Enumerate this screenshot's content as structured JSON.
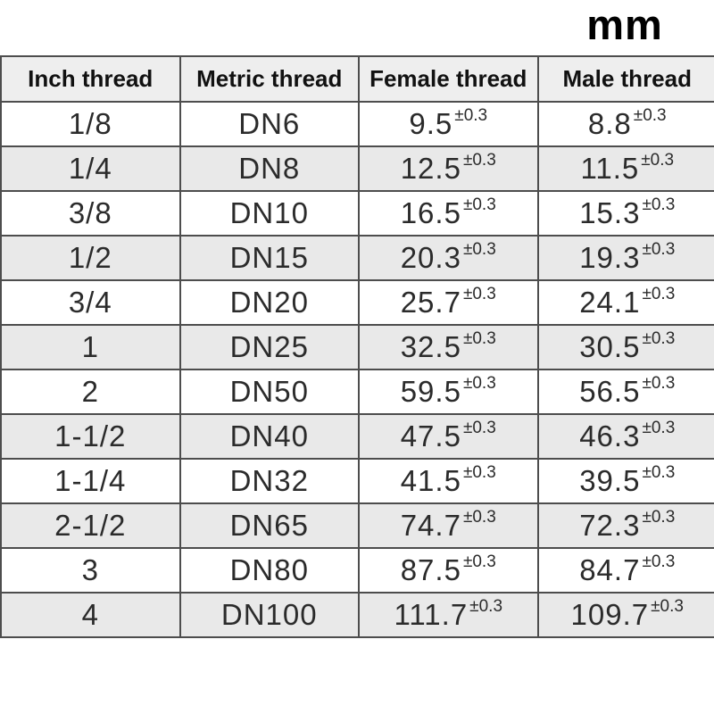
{
  "unit_label": "mm",
  "colors": {
    "border": "#4d4d4d",
    "header_bg": "#eeeeee",
    "alt_row_bg": "#e9e9e9",
    "page_bg": "#ffffff",
    "text": "#2b2b2b"
  },
  "chart_data": {
    "type": "table",
    "unit": "mm",
    "columns": [
      "Inch thread",
      "Metric thread",
      "Female thread",
      "Male thread"
    ],
    "tolerance": "±0.3",
    "rows": [
      {
        "inch": "1/8",
        "metric": "DN6",
        "female": "9.5",
        "male": "8.8"
      },
      {
        "inch": "1/4",
        "metric": "DN8",
        "female": "12.5",
        "male": "11.5"
      },
      {
        "inch": "3/8",
        "metric": "DN10",
        "female": "16.5",
        "male": "15.3"
      },
      {
        "inch": "1/2",
        "metric": "DN15",
        "female": "20.3",
        "male": "19.3"
      },
      {
        "inch": "3/4",
        "metric": "DN20",
        "female": "25.7",
        "male": "24.1"
      },
      {
        "inch": "1",
        "metric": "DN25",
        "female": "32.5",
        "male": "30.5"
      },
      {
        "inch": "2",
        "metric": "DN50",
        "female": "59.5",
        "male": "56.5"
      },
      {
        "inch": "1-1/2",
        "metric": "DN40",
        "female": "47.5",
        "male": "46.3"
      },
      {
        "inch": "1-1/4",
        "metric": "DN32",
        "female": "41.5",
        "male": "39.5"
      },
      {
        "inch": "2-1/2",
        "metric": "DN65",
        "female": "74.7",
        "male": "72.3"
      },
      {
        "inch": "3",
        "metric": "DN80",
        "female": "87.5",
        "male": "84.7"
      },
      {
        "inch": "4",
        "metric": "DN100",
        "female": "111.7",
        "male": "109.7"
      }
    ]
  }
}
